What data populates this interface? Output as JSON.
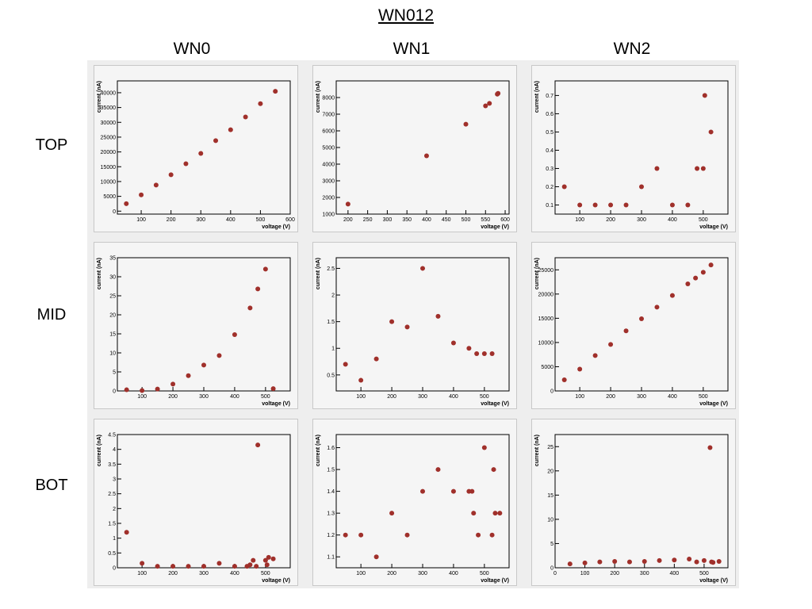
{
  "title": "WN012",
  "columns": [
    "WN0",
    "WN1",
    "WN2"
  ],
  "rows": [
    "TOP",
    "MID",
    "BOT"
  ],
  "marker_color": "#a0302b",
  "chart_data": [
    {
      "type": "scatter",
      "row": "TOP",
      "column": "WN0",
      "xlabel": "voltage (V)",
      "ylabel": "current (nA)",
      "xlim": [
        20,
        600
      ],
      "ylim": [
        -1000,
        44000
      ],
      "xticks": [
        100,
        200,
        300,
        400,
        500,
        600
      ],
      "yticks": [
        0,
        5000,
        10000,
        15000,
        20000,
        25000,
        30000,
        35000,
        40000
      ],
      "x": [
        50,
        100,
        150,
        200,
        250,
        300,
        350,
        400,
        450,
        500,
        550
      ],
      "y": [
        2500,
        5500,
        8800,
        12300,
        16000,
        19500,
        23800,
        27500,
        31800,
        36300,
        40500
      ]
    },
    {
      "type": "scatter",
      "row": "TOP",
      "column": "WN1",
      "xlabel": "voltage (V)",
      "ylabel": "current (nA)",
      "xlim": [
        170,
        610
      ],
      "ylim": [
        1000,
        9000
      ],
      "xticks": [
        200,
        250,
        300,
        350,
        400,
        450,
        500,
        550,
        600
      ],
      "yticks": [
        1000,
        2000,
        3000,
        4000,
        5000,
        6000,
        7000,
        8000
      ],
      "x": [
        200,
        400,
        500,
        550,
        560,
        580,
        582
      ],
      "y": [
        1600,
        4500,
        6400,
        7500,
        7650,
        8200,
        8250
      ]
    },
    {
      "type": "scatter",
      "row": "TOP",
      "column": "WN2",
      "xlabel": "voltage (V)",
      "ylabel": "current (nA)",
      "xlim": [
        20,
        580
      ],
      "ylim": [
        0.05,
        0.78
      ],
      "xticks": [
        100,
        200,
        300,
        400,
        500
      ],
      "yticks": [
        0.1,
        0.2,
        0.3,
        0.4,
        0.5,
        0.6,
        0.7
      ],
      "x": [
        50,
        100,
        150,
        200,
        250,
        300,
        350,
        400,
        450,
        480,
        500,
        505,
        525
      ],
      "y": [
        0.2,
        0.1,
        0.1,
        0.1,
        0.1,
        0.2,
        0.3,
        0.1,
        0.1,
        0.3,
        0.3,
        0.7,
        0.5
      ]
    },
    {
      "type": "scatter",
      "row": "MID",
      "column": "WN0",
      "xlabel": "voltage (V)",
      "ylabel": "current (nA)",
      "xlim": [
        20,
        580
      ],
      "ylim": [
        0,
        35
      ],
      "xticks": [
        100,
        200,
        300,
        400,
        500
      ],
      "yticks": [
        0,
        5,
        10,
        15,
        20,
        25,
        30,
        35
      ],
      "x": [
        50,
        100,
        150,
        200,
        250,
        300,
        350,
        400,
        450,
        475,
        500,
        525
      ],
      "y": [
        0.3,
        0.1,
        0.5,
        1.8,
        4,
        6.8,
        9.3,
        14.8,
        21.8,
        26.8,
        32,
        0.6
      ]
    },
    {
      "type": "scatter",
      "row": "MID",
      "column": "WN1",
      "xlabel": "voltage (V)",
      "ylabel": "current (nA)",
      "xlim": [
        20,
        580
      ],
      "ylim": [
        0.2,
        2.7
      ],
      "xticks": [
        100,
        200,
        300,
        400,
        500
      ],
      "yticks": [
        0.5,
        1,
        1.5,
        2,
        2.5
      ],
      "x": [
        50,
        100,
        150,
        200,
        250,
        300,
        350,
        400,
        450,
        475,
        500,
        525
      ],
      "y": [
        0.7,
        0.4,
        0.8,
        1.5,
        1.4,
        2.5,
        1.6,
        1.1,
        1,
        0.9,
        0.9,
        0.9
      ]
    },
    {
      "type": "scatter",
      "row": "MID",
      "column": "WN2",
      "xlabel": "voltage (V)",
      "ylabel": "current (nA)",
      "xlim": [
        20,
        580
      ],
      "ylim": [
        0,
        27500
      ],
      "xticks": [
        100,
        200,
        300,
        400,
        500
      ],
      "yticks": [
        0,
        5000,
        10000,
        15000,
        20000,
        25000
      ],
      "x": [
        50,
        100,
        150,
        200,
        250,
        300,
        350,
        400,
        450,
        475,
        500,
        525
      ],
      "y": [
        2300,
        4500,
        7300,
        9600,
        12400,
        14900,
        17300,
        19700,
        22100,
        23300,
        24500,
        26000
      ]
    },
    {
      "type": "scatter",
      "row": "BOT",
      "column": "WN0",
      "xlabel": "voltage (V)",
      "ylabel": "current (nA)",
      "xlim": [
        20,
        580
      ],
      "ylim": [
        0,
        4.5
      ],
      "xticks": [
        100,
        200,
        300,
        400,
        500
      ],
      "yticks": [
        0,
        0.5,
        1,
        1.5,
        2,
        2.5,
        3,
        3.5,
        4,
        4.5
      ],
      "x": [
        50,
        100,
        150,
        200,
        250,
        300,
        350,
        400,
        440,
        450,
        460,
        470,
        475,
        500,
        505,
        510,
        525
      ],
      "y": [
        1.2,
        0.15,
        0.05,
        0.05,
        0.05,
        0.05,
        0.15,
        0.05,
        0.05,
        0.1,
        0.25,
        0.05,
        4.15,
        0.25,
        0.1,
        0.35,
        0.3
      ]
    },
    {
      "type": "scatter",
      "row": "BOT",
      "column": "WN1",
      "xlabel": "voltage (V)",
      "ylabel": "current (nA)",
      "xlim": [
        20,
        580
      ],
      "ylim": [
        1.05,
        1.66
      ],
      "xticks": [
        100,
        200,
        300,
        400,
        500
      ],
      "yticks": [
        1.1,
        1.2,
        1.3,
        1.4,
        1.5,
        1.6
      ],
      "x": [
        50,
        100,
        150,
        200,
        250,
        300,
        350,
        400,
        450,
        460,
        465,
        480,
        500,
        525,
        530,
        535,
        550
      ],
      "y": [
        1.2,
        1.2,
        1.1,
        1.3,
        1.2,
        1.4,
        1.5,
        1.4,
        1.4,
        1.4,
        1.3,
        1.2,
        1.6,
        1.2,
        1.5,
        1.3,
        1.3
      ]
    },
    {
      "type": "scatter",
      "row": "BOT",
      "column": "WN2",
      "xlabel": "voltage (V)",
      "ylabel": "current (nA)",
      "xlim": [
        0,
        580
      ],
      "ylim": [
        0,
        27.5
      ],
      "xticks": [
        0,
        100,
        200,
        300,
        400,
        500
      ],
      "yticks": [
        0,
        5,
        10,
        15,
        20,
        25
      ],
      "x": [
        50,
        100,
        150,
        200,
        250,
        300,
        350,
        400,
        450,
        475,
        500,
        520,
        525,
        530,
        550
      ],
      "y": [
        0.8,
        1,
        1.2,
        1.3,
        1.2,
        1.3,
        1.5,
        1.6,
        1.8,
        1.2,
        1.5,
        24.8,
        1.2,
        1.1,
        1.3
      ]
    }
  ]
}
